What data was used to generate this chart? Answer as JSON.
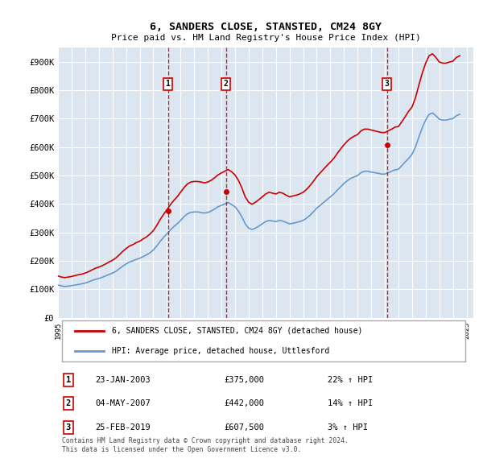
{
  "title": "6, SANDERS CLOSE, STANSTED, CM24 8GY",
  "subtitle": "Price paid vs. HM Land Registry's House Price Index (HPI)",
  "ylabel": "",
  "background_color": "#ffffff",
  "plot_background": "#dce6f1",
  "grid_color": "#ffffff",
  "sale_line_color": "#cc0000",
  "hpi_line_color": "#6699cc",
  "sales": [
    {
      "date_num": 2003.07,
      "price": 375000,
      "label": "1"
    },
    {
      "date_num": 2007.34,
      "price": 442000,
      "label": "2"
    },
    {
      "date_num": 2019.15,
      "price": 607500,
      "label": "3"
    }
  ],
  "table_rows": [
    {
      "num": "1",
      "date": "23-JAN-2003",
      "price": "£375,000",
      "hpi": "22% ↑ HPI"
    },
    {
      "num": "2",
      "date": "04-MAY-2007",
      "price": "£442,000",
      "hpi": "14% ↑ HPI"
    },
    {
      "num": "3",
      "date": "25-FEB-2019",
      "price": "£607,500",
      "hpi": "3% ↑ HPI"
    }
  ],
  "footer": "Contains HM Land Registry data © Crown copyright and database right 2024.\nThis data is licensed under the Open Government Licence v3.0.",
  "legend_sale": "6, SANDERS CLOSE, STANSTED, CM24 8GY (detached house)",
  "legend_hpi": "HPI: Average price, detached house, Uttlesford",
  "ylim": [
    0,
    950000
  ],
  "xlim_start": 1995.0,
  "xlim_end": 2025.5,
  "yticks": [
    0,
    100000,
    200000,
    300000,
    400000,
    500000,
    600000,
    700000,
    800000,
    900000
  ],
  "ytick_labels": [
    "£0",
    "£100K",
    "£200K",
    "£300K",
    "£400K",
    "£500K",
    "£600K",
    "£700K",
    "£800K",
    "£900K"
  ],
  "xticks": [
    1995,
    1996,
    1997,
    1998,
    1999,
    2000,
    2001,
    2002,
    2003,
    2004,
    2005,
    2006,
    2007,
    2008,
    2009,
    2010,
    2011,
    2012,
    2013,
    2014,
    2015,
    2016,
    2017,
    2018,
    2019,
    2020,
    2021,
    2022,
    2023,
    2024,
    2025
  ],
  "hpi_data": {
    "years": [
      1995.0,
      1995.25,
      1995.5,
      1995.75,
      1996.0,
      1996.25,
      1996.5,
      1996.75,
      1997.0,
      1997.25,
      1997.5,
      1997.75,
      1998.0,
      1998.25,
      1998.5,
      1998.75,
      1999.0,
      1999.25,
      1999.5,
      1999.75,
      2000.0,
      2000.25,
      2000.5,
      2000.75,
      2001.0,
      2001.25,
      2001.5,
      2001.75,
      2002.0,
      2002.25,
      2002.5,
      2002.75,
      2003.0,
      2003.25,
      2003.5,
      2003.75,
      2004.0,
      2004.25,
      2004.5,
      2004.75,
      2005.0,
      2005.25,
      2005.5,
      2005.75,
      2006.0,
      2006.25,
      2006.5,
      2006.75,
      2007.0,
      2007.25,
      2007.5,
      2007.75,
      2008.0,
      2008.25,
      2008.5,
      2008.75,
      2009.0,
      2009.25,
      2009.5,
      2009.75,
      2010.0,
      2010.25,
      2010.5,
      2010.75,
      2011.0,
      2011.25,
      2011.5,
      2011.75,
      2012.0,
      2012.25,
      2012.5,
      2012.75,
      2013.0,
      2013.25,
      2013.5,
      2013.75,
      2014.0,
      2014.25,
      2014.5,
      2014.75,
      2015.0,
      2015.25,
      2015.5,
      2015.75,
      2016.0,
      2016.25,
      2016.5,
      2016.75,
      2017.0,
      2017.25,
      2017.5,
      2017.75,
      2018.0,
      2018.25,
      2018.5,
      2018.75,
      2019.0,
      2019.25,
      2019.5,
      2019.75,
      2020.0,
      2020.25,
      2020.5,
      2020.75,
      2021.0,
      2021.25,
      2021.5,
      2021.75,
      2022.0,
      2022.25,
      2022.5,
      2022.75,
      2023.0,
      2023.25,
      2023.5,
      2023.75,
      2024.0,
      2024.25,
      2024.5
    ],
    "values": [
      115000,
      112000,
      110000,
      111000,
      113000,
      115000,
      117000,
      119000,
      122000,
      126000,
      131000,
      135000,
      138000,
      142000,
      147000,
      152000,
      157000,
      163000,
      172000,
      181000,
      189000,
      196000,
      200000,
      205000,
      209000,
      215000,
      221000,
      228000,
      238000,
      252000,
      268000,
      282000,
      295000,
      308000,
      320000,
      330000,
      342000,
      355000,
      365000,
      370000,
      372000,
      372000,
      370000,
      368000,
      370000,
      375000,
      382000,
      390000,
      395000,
      400000,
      405000,
      398000,
      390000,
      375000,
      355000,
      330000,
      315000,
      310000,
      315000,
      322000,
      330000,
      338000,
      342000,
      340000,
      338000,
      342000,
      340000,
      335000,
      330000,
      332000,
      335000,
      338000,
      342000,
      350000,
      360000,
      372000,
      385000,
      395000,
      405000,
      415000,
      425000,
      435000,
      448000,
      460000,
      472000,
      482000,
      490000,
      495000,
      500000,
      510000,
      515000,
      515000,
      512000,
      510000,
      508000,
      505000,
      505000,
      510000,
      515000,
      520000,
      522000,
      535000,
      548000,
      560000,
      575000,
      600000,
      635000,
      668000,
      695000,
      715000,
      720000,
      710000,
      698000,
      695000,
      695000,
      698000,
      700000,
      710000,
      715000
    ]
  },
  "sale_hpi_data": {
    "years": [
      1995.0,
      1995.25,
      1995.5,
      1995.75,
      1996.0,
      1996.25,
      1996.5,
      1996.75,
      1997.0,
      1997.25,
      1997.5,
      1997.75,
      1998.0,
      1998.25,
      1998.5,
      1998.75,
      1999.0,
      1999.25,
      1999.5,
      1999.75,
      2000.0,
      2000.25,
      2000.5,
      2000.75,
      2001.0,
      2001.25,
      2001.5,
      2001.75,
      2002.0,
      2002.25,
      2002.5,
      2002.75,
      2003.0,
      2003.25,
      2003.5,
      2003.75,
      2004.0,
      2004.25,
      2004.5,
      2004.75,
      2005.0,
      2005.25,
      2005.5,
      2005.75,
      2006.0,
      2006.25,
      2006.5,
      2006.75,
      2007.0,
      2007.25,
      2007.5,
      2007.75,
      2008.0,
      2008.25,
      2008.5,
      2008.75,
      2009.0,
      2009.25,
      2009.5,
      2009.75,
      2010.0,
      2010.25,
      2010.5,
      2010.75,
      2011.0,
      2011.25,
      2011.5,
      2011.75,
      2012.0,
      2012.25,
      2012.5,
      2012.75,
      2013.0,
      2013.25,
      2013.5,
      2013.75,
      2014.0,
      2014.25,
      2014.5,
      2014.75,
      2015.0,
      2015.25,
      2015.5,
      2015.75,
      2016.0,
      2016.25,
      2016.5,
      2016.75,
      2017.0,
      2017.25,
      2017.5,
      2017.75,
      2018.0,
      2018.25,
      2018.5,
      2018.75,
      2019.0,
      2019.25,
      2019.5,
      2019.75,
      2020.0,
      2020.25,
      2020.5,
      2020.75,
      2021.0,
      2021.25,
      2021.5,
      2021.75,
      2022.0,
      2022.25,
      2022.5,
      2022.75,
      2023.0,
      2023.25,
      2023.5,
      2023.75,
      2024.0,
      2024.25,
      2024.5
    ],
    "values": [
      147000,
      143000,
      141000,
      143000,
      145000,
      148000,
      151000,
      153000,
      157000,
      162000,
      168000,
      174000,
      178000,
      183000,
      189000,
      196000,
      202000,
      210000,
      221000,
      233000,
      243000,
      252000,
      257000,
      264000,
      269000,
      277000,
      284000,
      294000,
      306000,
      324000,
      345000,
      363000,
      380000,
      397000,
      412000,
      425000,
      441000,
      457000,
      470000,
      477000,
      479000,
      479000,
      477000,
      474000,
      477000,
      483000,
      492000,
      502000,
      509000,
      515000,
      521000,
      513000,
      502000,
      483000,
      457000,
      425000,
      406000,
      399000,
      406000,
      415000,
      425000,
      435000,
      441000,
      438000,
      435000,
      441000,
      438000,
      431000,
      425000,
      428000,
      431000,
      435000,
      441000,
      451000,
      464000,
      479000,
      496000,
      509000,
      522000,
      535000,
      547000,
      560000,
      577000,
      593000,
      608000,
      621000,
      631000,
      638000,
      644000,
      657000,
      663000,
      663000,
      660000,
      657000,
      654000,
      651000,
      651000,
      657000,
      663000,
      670000,
      672000,
      689000,
      707000,
      726000,
      741000,
      773000,
      818000,
      860000,
      895000,
      921000,
      928000,
      915000,
      899000,
      895000,
      895000,
      899000,
      902000,
      915000,
      921000
    ]
  }
}
